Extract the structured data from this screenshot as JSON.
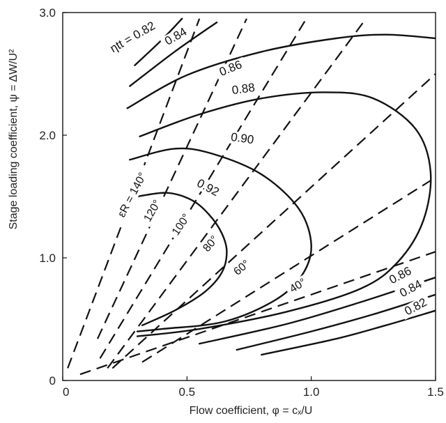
{
  "chart_data": {
    "type": "line",
    "title": "",
    "xlabel": "Flow coefficient, φ = cₓ/U",
    "ylabel": "Stage loading coefficient, ψ = ΔW/U²",
    "xlim": [
      0,
      1.5
    ],
    "ylim": [
      0,
      3.0
    ],
    "x_ticks": [
      "0",
      "0.5",
      "1.0",
      "1.5"
    ],
    "y_ticks": [
      "0",
      "1.0",
      "2.0",
      "3.0"
    ],
    "grid": false,
    "legend": "none",
    "efficiency_label_prefix": "ηtt = ",
    "efficiency_contours": [
      {
        "name": "0.82",
        "group": "upper",
        "points": [
          [
            0.29,
            2.57
          ],
          [
            0.4,
            2.78
          ],
          [
            0.48,
            2.95
          ]
        ]
      },
      {
        "name": "0.84",
        "group": "upper",
        "points": [
          [
            0.27,
            2.4
          ],
          [
            0.45,
            2.68
          ],
          [
            0.62,
            2.92
          ]
        ]
      },
      {
        "name": "0.86",
        "group": "upper",
        "points": [
          [
            0.26,
            2.22
          ],
          [
            0.5,
            2.49
          ],
          [
            0.8,
            2.68
          ],
          [
            1.1,
            2.79
          ],
          [
            1.3,
            2.82
          ],
          [
            1.5,
            2.79
          ]
        ]
      },
      {
        "name": "0.88",
        "group": "upper",
        "points": [
          [
            0.31,
            1.99
          ],
          [
            0.55,
            2.17
          ],
          [
            0.8,
            2.3
          ],
          [
            1.05,
            2.35
          ],
          [
            1.25,
            2.3
          ],
          [
            1.42,
            2.05
          ],
          [
            1.48,
            1.7
          ],
          [
            1.45,
            1.3
          ],
          [
            1.35,
            0.97
          ],
          [
            1.2,
            0.75
          ],
          [
            0.9,
            0.56
          ],
          [
            0.55,
            0.42
          ],
          [
            0.3,
            0.36
          ]
        ]
      },
      {
        "name": "0.90",
        "group": "upper",
        "points": [
          [
            0.27,
            1.8
          ],
          [
            0.45,
            1.89
          ],
          [
            0.6,
            1.85
          ],
          [
            0.8,
            1.68
          ],
          [
            0.95,
            1.4
          ],
          [
            1.0,
            1.1
          ],
          [
            0.96,
            0.85
          ],
          [
            0.85,
            0.65
          ],
          [
            0.65,
            0.48
          ],
          [
            0.4,
            0.42
          ],
          [
            0.3,
            0.4
          ]
        ]
      },
      {
        "name": "0.92",
        "group": "upper",
        "points": [
          [
            0.3,
            1.5
          ],
          [
            0.42,
            1.53
          ],
          [
            0.52,
            1.47
          ],
          [
            0.59,
            1.35
          ],
          [
            0.64,
            1.2
          ],
          [
            0.66,
            1.05
          ],
          [
            0.64,
            0.88
          ],
          [
            0.57,
            0.72
          ],
          [
            0.45,
            0.57
          ],
          [
            0.32,
            0.45
          ]
        ]
      },
      {
        "name": "0.86",
        "group": "lower",
        "points": [
          [
            0.55,
            0.3
          ],
          [
            0.9,
            0.46
          ],
          [
            1.2,
            0.64
          ],
          [
            1.5,
            0.84
          ]
        ]
      },
      {
        "name": "0.84",
        "group": "lower",
        "points": [
          [
            0.7,
            0.25
          ],
          [
            1.0,
            0.4
          ],
          [
            1.25,
            0.54
          ],
          [
            1.5,
            0.7
          ]
        ]
      },
      {
        "name": "0.82",
        "group": "lower",
        "points": [
          [
            0.8,
            0.21
          ],
          [
            1.1,
            0.34
          ],
          [
            1.3,
            0.45
          ],
          [
            1.5,
            0.57
          ]
        ]
      }
    ],
    "reaction_angle_label_prefix": "εR = ",
    "reaction_angle_lines": [
      {
        "name": "140°",
        "points": [
          [
            0.02,
            0.1
          ],
          [
            0.55,
            2.95
          ]
        ]
      },
      {
        "name": "120°",
        "points": [
          [
            0.14,
            0.34
          ],
          [
            0.74,
            2.95
          ]
        ]
      },
      {
        "name": "100°",
        "points": [
          [
            0.15,
            0.18
          ],
          [
            0.98,
            2.95
          ]
        ]
      },
      {
        "name": "80°",
        "points": [
          [
            0.18,
            0.1
          ],
          [
            1.22,
            2.95
          ]
        ]
      },
      {
        "name": "60°",
        "points": [
          [
            0.2,
            0.1
          ],
          [
            1.5,
            2.5
          ]
        ]
      },
      {
        "name": "40°",
        "points": [
          [
            0.32,
            0.15
          ],
          [
            1.48,
            1.63
          ]
        ]
      },
      {
        "name": "",
        "points": [
          [
            0.07,
            0.05
          ],
          [
            1.5,
            1.05
          ]
        ]
      }
    ],
    "labels": {
      "eta_main": {
        "eff": "0.82",
        "angle": "140°"
      }
    }
  }
}
